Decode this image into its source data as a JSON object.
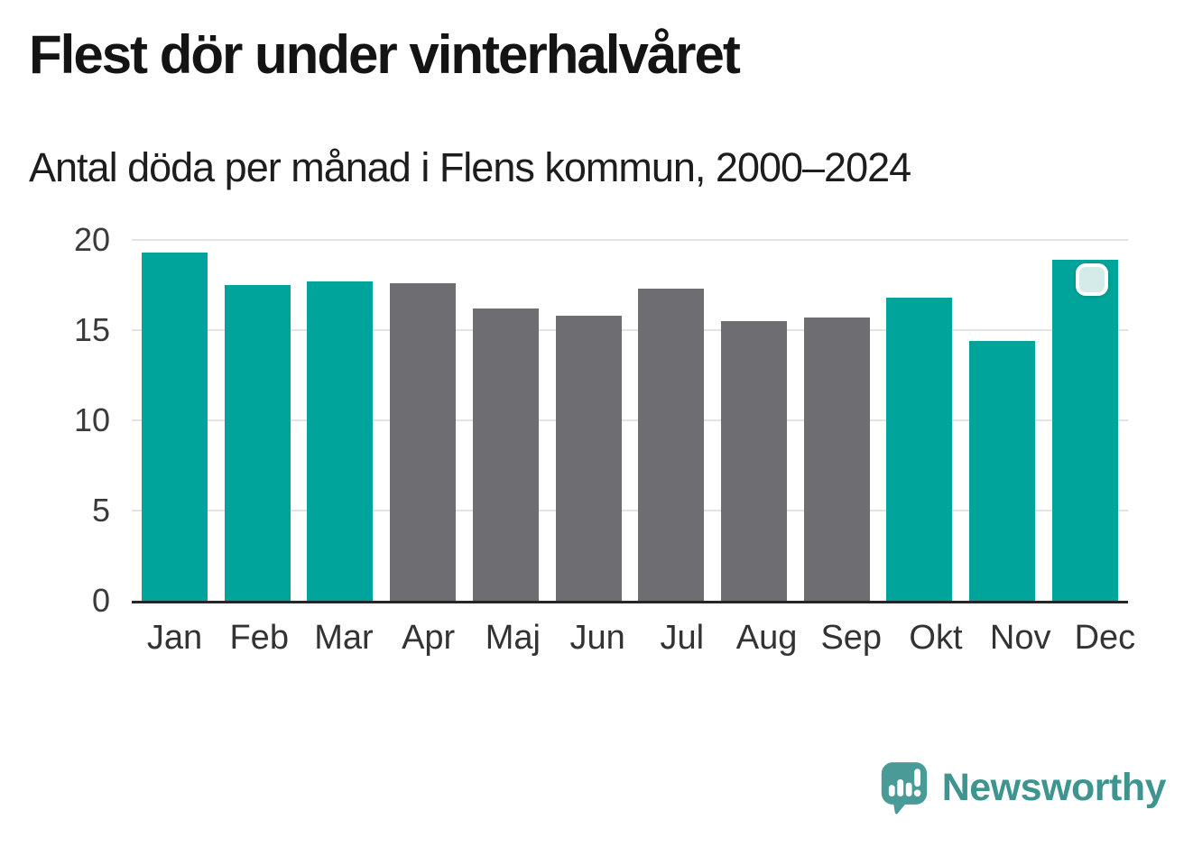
{
  "title": "Flest dör under vinterhalvåret",
  "subtitle": "Antal döda per månad i Flens kommun, 2000–2024",
  "brand": {
    "name": "Newsworthy"
  },
  "colors": {
    "highlight": "#00a49b",
    "muted": "#6d6d72",
    "grid": "#e3e3e3",
    "axis": "#262626",
    "marker_fill": "#d4ebea",
    "marker_border": "#ffffff",
    "brand_mark": "#4a9b98",
    "brand_text": "#3e948f"
  },
  "chart_data": {
    "type": "bar",
    "title": "Flest dör under vinterhalvåret",
    "subtitle": "Antal döda per månad i Flens kommun, 2000–2024",
    "categories": [
      "Jan",
      "Feb",
      "Mar",
      "Apr",
      "Maj",
      "Jun",
      "Jul",
      "Aug",
      "Sep",
      "Okt",
      "Nov",
      "Dec"
    ],
    "values": [
      19.3,
      17.5,
      17.7,
      17.6,
      16.2,
      15.8,
      17.3,
      15.5,
      15.7,
      16.8,
      14.4,
      18.9
    ],
    "highlighted_categories": [
      "Jan",
      "Feb",
      "Mar",
      "Okt",
      "Nov",
      "Dec"
    ],
    "marker_on": "Dec",
    "xlabel": "",
    "ylabel": "",
    "y_ticks": [
      0,
      5,
      10,
      15,
      20
    ],
    "ylim": [
      0,
      20
    ],
    "grid": true,
    "legend": false
  }
}
